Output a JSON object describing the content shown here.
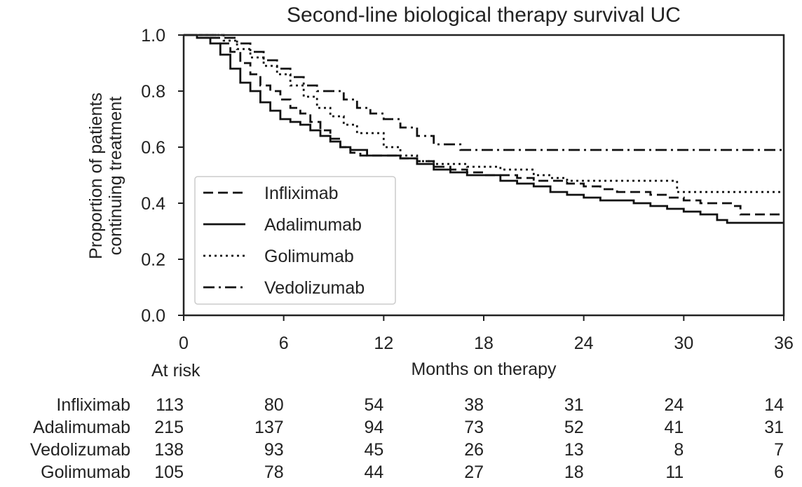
{
  "chart_data": {
    "type": "line",
    "title": "Second-line biological therapy survival UC",
    "xlabel": "Months on therapy",
    "ylabel": [
      "Proportion of patients",
      "continuing treatment"
    ],
    "xlim": [
      0,
      36
    ],
    "ylim": [
      0,
      1.0
    ],
    "xticks": [
      0,
      6,
      12,
      18,
      24,
      30,
      36
    ],
    "xtick_labels": [
      "0",
      "6",
      "12",
      "18",
      "24",
      "30",
      "36"
    ],
    "yticks": [
      0.0,
      0.2,
      0.4,
      0.6,
      0.8,
      1.0
    ],
    "ytick_labels": [
      "0.0",
      "0.2",
      "0.4",
      "0.6",
      "0.8",
      "1.0"
    ],
    "grid": false,
    "legend_position": "center-left",
    "series": [
      {
        "name": "Infliximab",
        "line_style": "dashed",
        "color": "#111111",
        "x": [
          0,
          0.8,
          1.6,
          2.2,
          2.8,
          3.4,
          4.0,
          4.6,
          5.2,
          5.8,
          6.4,
          7.0,
          7.6,
          8.2,
          8.8,
          9.4,
          10.0,
          10.6,
          11.2,
          12.0,
          13.0,
          14.0,
          15.0,
          16.0,
          17.0,
          18.0,
          19.0,
          20.0,
          21.0,
          22.0,
          23.0,
          24.0,
          25.0,
          26.0,
          27.0,
          28.0,
          29.0,
          30.0,
          31.0,
          32.0,
          33.0,
          33.4,
          35.0,
          36.0
        ],
        "y": [
          1.0,
          1.0,
          0.99,
          0.97,
          0.94,
          0.9,
          0.86,
          0.82,
          0.8,
          0.77,
          0.74,
          0.72,
          0.69,
          0.66,
          0.63,
          0.6,
          0.58,
          0.57,
          0.57,
          0.57,
          0.56,
          0.55,
          0.53,
          0.52,
          0.51,
          0.5,
          0.5,
          0.49,
          0.48,
          0.48,
          0.47,
          0.46,
          0.45,
          0.44,
          0.44,
          0.43,
          0.42,
          0.41,
          0.4,
          0.4,
          0.39,
          0.36,
          0.36,
          0.36
        ]
      },
      {
        "name": "Adalimumab",
        "line_style": "solid",
        "color": "#111111",
        "x": [
          0,
          0.8,
          1.6,
          2.2,
          2.8,
          3.4,
          4.0,
          4.6,
          5.2,
          5.8,
          6.4,
          7.0,
          7.6,
          8.2,
          8.8,
          9.4,
          10.0,
          11.0,
          12.0,
          13.0,
          14.0,
          15.0,
          16.0,
          17.0,
          18.0,
          19.0,
          20.0,
          21.0,
          22.0,
          23.0,
          24.0,
          25.0,
          26.0,
          27.0,
          28.0,
          29.0,
          30.0,
          31.0,
          32.0,
          32.6,
          36.0
        ],
        "y": [
          1.0,
          0.99,
          0.97,
          0.93,
          0.88,
          0.83,
          0.8,
          0.76,
          0.73,
          0.7,
          0.69,
          0.68,
          0.66,
          0.64,
          0.62,
          0.6,
          0.59,
          0.57,
          0.57,
          0.56,
          0.54,
          0.52,
          0.51,
          0.5,
          0.5,
          0.48,
          0.47,
          0.46,
          0.44,
          0.43,
          0.42,
          0.41,
          0.41,
          0.4,
          0.39,
          0.38,
          0.37,
          0.36,
          0.34,
          0.33,
          0.33
        ]
      },
      {
        "name": "Golimumab",
        "line_style": "dotted",
        "color": "#111111",
        "x": [
          0,
          0.8,
          1.6,
          2.4,
          3.2,
          4.0,
          4.8,
          5.6,
          6.4,
          7.2,
          8.0,
          8.8,
          9.6,
          10.4,
          11.2,
          12.0,
          13.0,
          14.0,
          15.0,
          16.0,
          17.0,
          18.0,
          19.0,
          20.0,
          21.0,
          22.0,
          23.0,
          24.0,
          25.0,
          26.0,
          27.0,
          28.0,
          29.0,
          29.6,
          30.0,
          36.0
        ],
        "y": [
          1.0,
          1.0,
          1.0,
          0.98,
          0.95,
          0.92,
          0.89,
          0.86,
          0.82,
          0.78,
          0.74,
          0.71,
          0.68,
          0.65,
          0.65,
          0.6,
          0.57,
          0.55,
          0.54,
          0.54,
          0.53,
          0.53,
          0.52,
          0.52,
          0.5,
          0.49,
          0.48,
          0.48,
          0.48,
          0.48,
          0.48,
          0.48,
          0.48,
          0.44,
          0.44,
          0.44
        ]
      },
      {
        "name": "Vedolizumab",
        "line_style": "dashdot",
        "color": "#111111",
        "x": [
          0,
          0.8,
          1.6,
          2.4,
          3.2,
          4.0,
          4.8,
          5.6,
          6.4,
          7.2,
          8.0,
          8.8,
          9.6,
          10.4,
          11.2,
          12.0,
          13.0,
          14.0,
          15.0,
          16.0,
          16.6,
          17.0,
          36.0
        ],
        "y": [
          1.0,
          1.0,
          1.0,
          0.99,
          0.97,
          0.94,
          0.91,
          0.88,
          0.85,
          0.82,
          0.8,
          0.8,
          0.77,
          0.74,
          0.72,
          0.7,
          0.67,
          0.64,
          0.61,
          0.61,
          0.59,
          0.59,
          0.59
        ]
      }
    ],
    "at_risk": {
      "header": "At risk",
      "times": [
        0,
        6,
        12,
        18,
        24,
        30,
        36
      ],
      "rows": [
        {
          "name": "Infliximab",
          "counts": [
            "113",
            "80",
            "54",
            "38",
            "31",
            "24",
            "14"
          ]
        },
        {
          "name": "Adalimumab",
          "counts": [
            "215",
            "137",
            "94",
            "73",
            "52",
            "41",
            "31"
          ]
        },
        {
          "name": "Vedolizumab",
          "counts": [
            "138",
            "93",
            "45",
            "26",
            "13",
            "8",
            "7"
          ]
        },
        {
          "name": "Golimumab",
          "counts": [
            "105",
            "78",
            "44",
            "27",
            "18",
            "11",
            "6"
          ]
        }
      ]
    }
  }
}
